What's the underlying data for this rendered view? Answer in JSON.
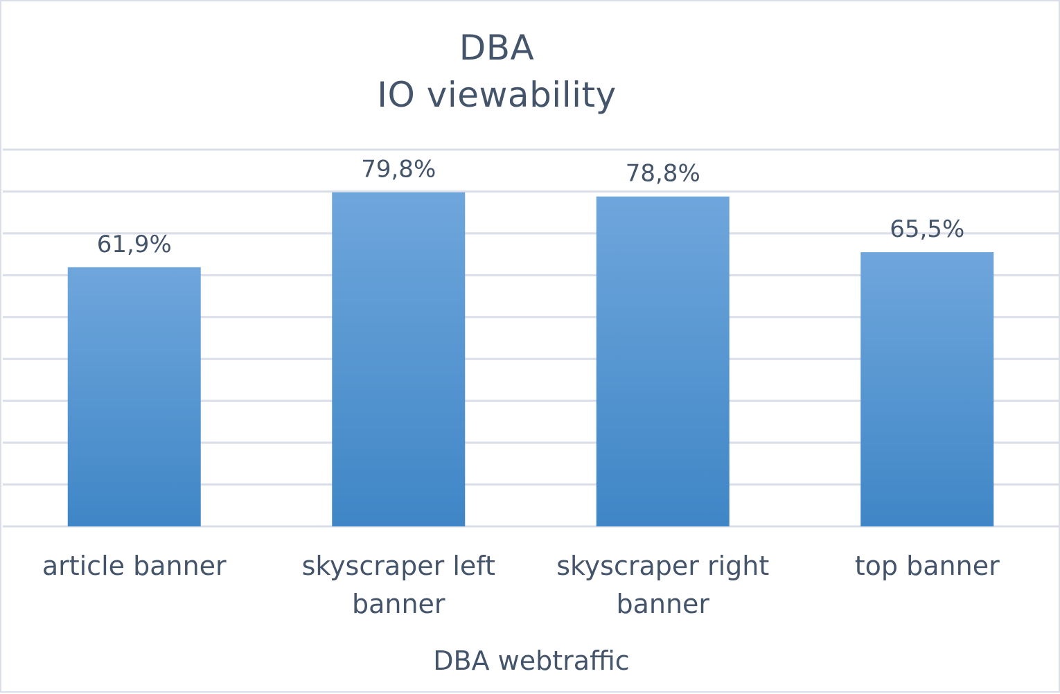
{
  "chart_data": {
    "type": "bar",
    "title": [
      "DBA",
      "IO viewability"
    ],
    "categories": [
      "article banner",
      "skyscraper left banner",
      "skyscraper right banner",
      "top banner"
    ],
    "category_lines": [
      [
        "article banner"
      ],
      [
        "skyscraper left",
        "banner"
      ],
      [
        "skyscraper right",
        "banner"
      ],
      [
        "top banner"
      ]
    ],
    "values": [
      61.9,
      79.8,
      78.8,
      65.5
    ],
    "data_labels": [
      "61,9%",
      "79,8%",
      "78,8%",
      "65,5%"
    ],
    "xlabel": "DBA webtraffic",
    "ylabel": "",
    "ylim": [
      0,
      90
    ],
    "y_tick_labels_shown": false,
    "grid": true,
    "legend": "none",
    "colors": {
      "bar_top": "#6fa6dc",
      "bar_bottom": "#3f86c6",
      "grid": "#d9dee8",
      "text": "#44546a"
    }
  }
}
